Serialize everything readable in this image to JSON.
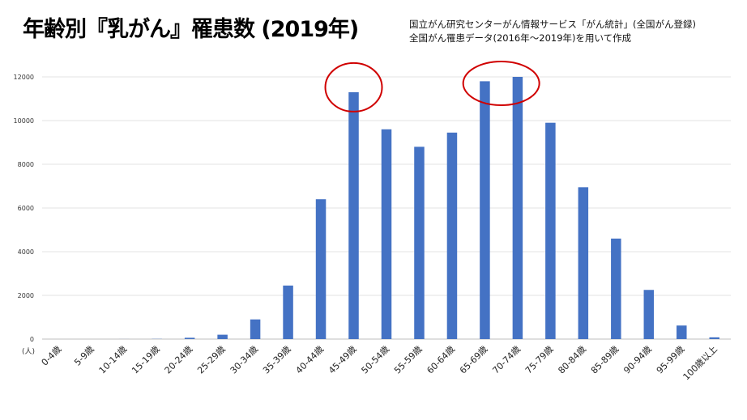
{
  "header": {
    "title": "年齢別『乳がん』罹患数 (2019年)",
    "source_line1": "国立がん研究センターがん情報サービス「がん統計」(全国がん登録)",
    "source_line2": "全国がん罹患データ(2016年～2019年)を用いて作成"
  },
  "chart_data": {
    "type": "bar",
    "title": "年齢別『乳がん』罹患数 (2019年)",
    "xlabel": "",
    "ylabel": "(人)",
    "ylim": [
      0,
      12000
    ],
    "yticks": [
      0,
      2000,
      4000,
      6000,
      8000,
      10000,
      12000
    ],
    "grid": true,
    "categories": [
      "0-4歳",
      "5-9歳",
      "10-14歳",
      "15-19歳",
      "20-24歳",
      "25-29歳",
      "30-34歳",
      "35-39歳",
      "40-44歳",
      "45-49歳",
      "50-54歳",
      "55-59歳",
      "60-64歳",
      "65-69歳",
      "70-74歳",
      "75-79歳",
      "80-84歳",
      "85-89歳",
      "90-94歳",
      "95-99歳",
      "100歳以上"
    ],
    "values": [
      0,
      0,
      2,
      8,
      60,
      200,
      900,
      2450,
      6400,
      11300,
      9600,
      8800,
      9450,
      11800,
      12000,
      9900,
      6950,
      4600,
      2250,
      620,
      80
    ],
    "bar_color": "#4472C4",
    "highlight_circles": [
      "45-49歳",
      "65-69歳",
      "70-74歳"
    ],
    "highlight_color": "#D00000"
  }
}
